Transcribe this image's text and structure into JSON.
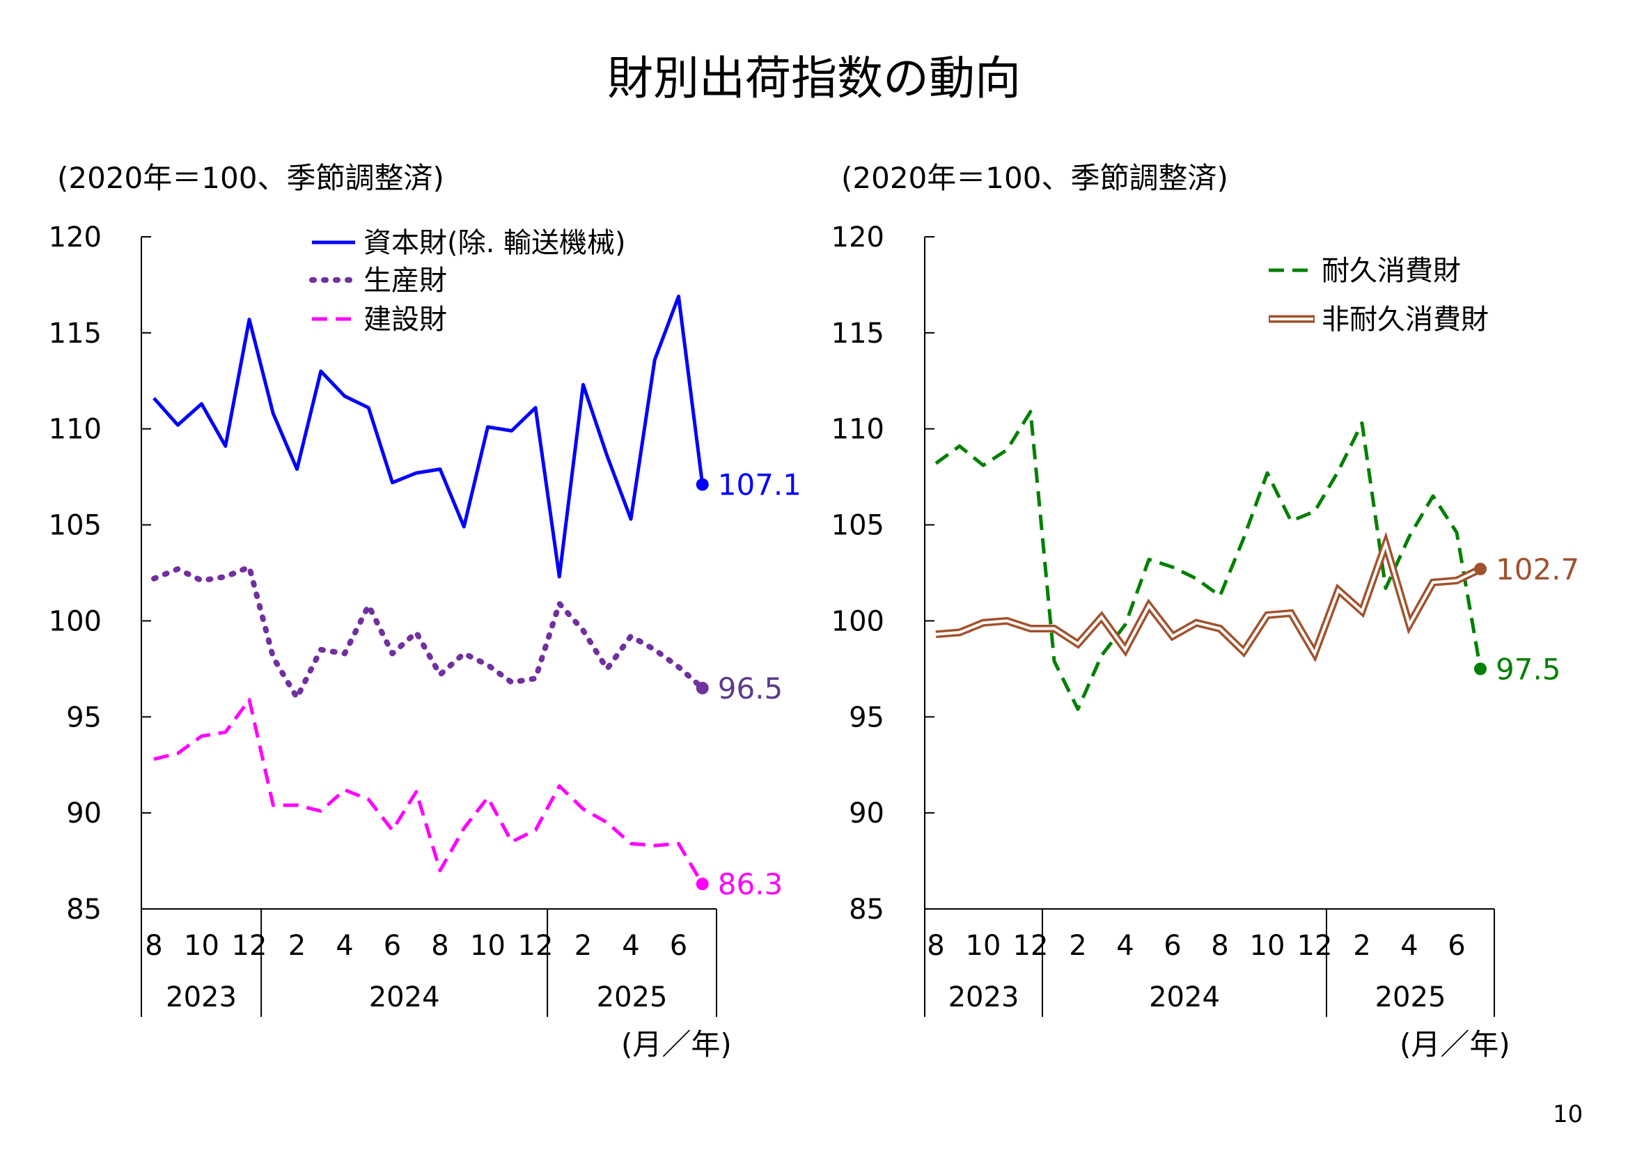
{
  "title": "財別出荷指数の動向",
  "page_number": "10",
  "colors": {
    "capital": "#0000FF",
    "production": "#7030A0",
    "production_label": "#5B3B8C",
    "construction": "#FF00FF",
    "durable": "#008000",
    "nondurable": "#A0522D",
    "axis": "#000000"
  },
  "chart_data": [
    {
      "type": "line",
      "unit_note": "(2020年＝100、季節調整済)",
      "x_unit": "(月／年)",
      "ylim": [
        85,
        120
      ],
      "yticks": [
        "120",
        "115",
        "110",
        "105",
        "100",
        "95",
        "90",
        "85"
      ],
      "x": [
        "2023-08",
        "2023-09",
        "2023-10",
        "2023-11",
        "2023-12",
        "2024-01",
        "2024-02",
        "2024-03",
        "2024-04",
        "2024-05",
        "2024-06",
        "2024-07",
        "2024-08",
        "2024-09",
        "2024-10",
        "2024-11",
        "2024-12",
        "2025-01",
        "2025-02",
        "2025-03",
        "2025-04",
        "2025-05",
        "2025-06",
        "2025-07"
      ],
      "month_ticks": [
        "8",
        "10",
        "12",
        "2",
        "4",
        "6",
        "8",
        "10",
        "12",
        "2",
        "4",
        "6"
      ],
      "years": [
        "2023",
        "2024",
        "2025"
      ],
      "grid": false,
      "legend_position": "top",
      "series": [
        {
          "name": "資本財(除. 輸送機械)",
          "color_key": "capital",
          "style": "solid",
          "values": [
            111.6,
            110.2,
            111.3,
            109.1,
            115.7,
            110.8,
            107.9,
            113.0,
            111.7,
            111.1,
            107.2,
            107.7,
            107.9,
            104.9,
            110.1,
            109.9,
            111.1,
            102.3,
            112.3,
            108.6,
            105.3,
            113.6,
            116.9,
            107.1
          ],
          "end_label": "107.1"
        },
        {
          "name": "生産財",
          "color_key": "production",
          "label_color_key": "production_label",
          "style": "dotted",
          "values": [
            102.2,
            102.7,
            102.1,
            102.3,
            102.8,
            98.1,
            96.0,
            98.5,
            98.3,
            100.8,
            98.3,
            99.4,
            97.2,
            98.3,
            97.7,
            96.8,
            97.0,
            100.9,
            99.5,
            97.5,
            99.2,
            98.5,
            97.6,
            96.5
          ],
          "end_label": "96.5"
        },
        {
          "name": "建設財",
          "color_key": "construction",
          "style": "dashed",
          "values": [
            92.8,
            93.1,
            94.0,
            94.2,
            95.9,
            90.4,
            90.4,
            90.1,
            91.2,
            90.7,
            89.1,
            91.1,
            87.0,
            89.2,
            90.8,
            88.5,
            89.1,
            91.4,
            90.2,
            89.5,
            88.4,
            88.3,
            88.4,
            86.3
          ],
          "end_label": "86.3"
        }
      ]
    },
    {
      "type": "line",
      "unit_note": "(2020年＝100、季節調整済)",
      "x_unit": "(月／年)",
      "ylim": [
        85,
        120
      ],
      "yticks": [
        "120",
        "115",
        "110",
        "105",
        "100",
        "95",
        "90",
        "85"
      ],
      "x": [
        "2023-08",
        "2023-09",
        "2023-10",
        "2023-11",
        "2023-12",
        "2024-01",
        "2024-02",
        "2024-03",
        "2024-04",
        "2024-05",
        "2024-06",
        "2024-07",
        "2024-08",
        "2024-09",
        "2024-10",
        "2024-11",
        "2024-12",
        "2025-01",
        "2025-02",
        "2025-03",
        "2025-04",
        "2025-05",
        "2025-06",
        "2025-07"
      ],
      "month_ticks": [
        "8",
        "10",
        "12",
        "2",
        "4",
        "6",
        "8",
        "10",
        "12",
        "2",
        "4",
        "6"
      ],
      "years": [
        "2023",
        "2024",
        "2025"
      ],
      "grid": false,
      "legend_position": "top-right",
      "series": [
        {
          "name": "耐久消費財",
          "color_key": "durable",
          "style": "dashed",
          "values": [
            108.2,
            109.1,
            108.1,
            108.9,
            110.9,
            97.9,
            95.4,
            98.2,
            99.8,
            103.2,
            102.8,
            102.2,
            101.3,
            104.3,
            107.7,
            105.2,
            105.7,
            107.8,
            110.3,
            101.7,
            104.4,
            106.5,
            104.6,
            97.5
          ],
          "end_label": "97.5"
        },
        {
          "name": "非耐久消費財",
          "color_key": "nondurable",
          "style": "double",
          "values": [
            99.3,
            99.4,
            99.9,
            100.0,
            99.6,
            99.6,
            98.8,
            100.2,
            98.5,
            100.8,
            99.2,
            99.9,
            99.6,
            98.4,
            100.3,
            100.4,
            98.3,
            101.6,
            100.5,
            104.0,
            99.8,
            102.0,
            102.1,
            102.7
          ],
          "end_label": "102.7"
        }
      ]
    }
  ]
}
